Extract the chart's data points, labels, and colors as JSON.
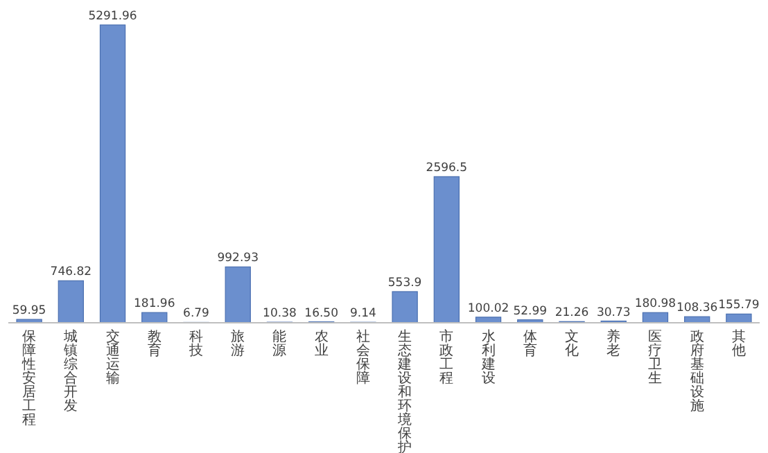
{
  "chart_data": {
    "type": "bar",
    "categories": [
      "保障性安居工程",
      "城镇综合开发",
      "交通运输",
      "教育",
      "科技",
      "旅游",
      "能源",
      "农业",
      "社会保障",
      "生态建设和环境保护",
      "市政工程",
      "水利建设",
      "体育",
      "文化",
      "养老",
      "医疗卫生",
      "政府基础设施",
      "其他"
    ],
    "values": [
      59.95,
      746.82,
      5291.96,
      181.96,
      6.79,
      992.93,
      10.38,
      16.5,
      9.14,
      553.9,
      2596.5,
      100.02,
      52.99,
      21.26,
      30.73,
      180.98,
      108.36,
      155.79
    ],
    "value_labels": [
      "59.95",
      "746.82",
      "5291.96",
      "181.96",
      "6.79",
      "992.93",
      "10.38",
      "16.50",
      "9.14",
      "553.9",
      "2596.5",
      "100.02",
      "52.99",
      "21.26",
      "30.73",
      "180.98",
      "108.36",
      "155.79"
    ],
    "color": "#6b8fce"
  }
}
